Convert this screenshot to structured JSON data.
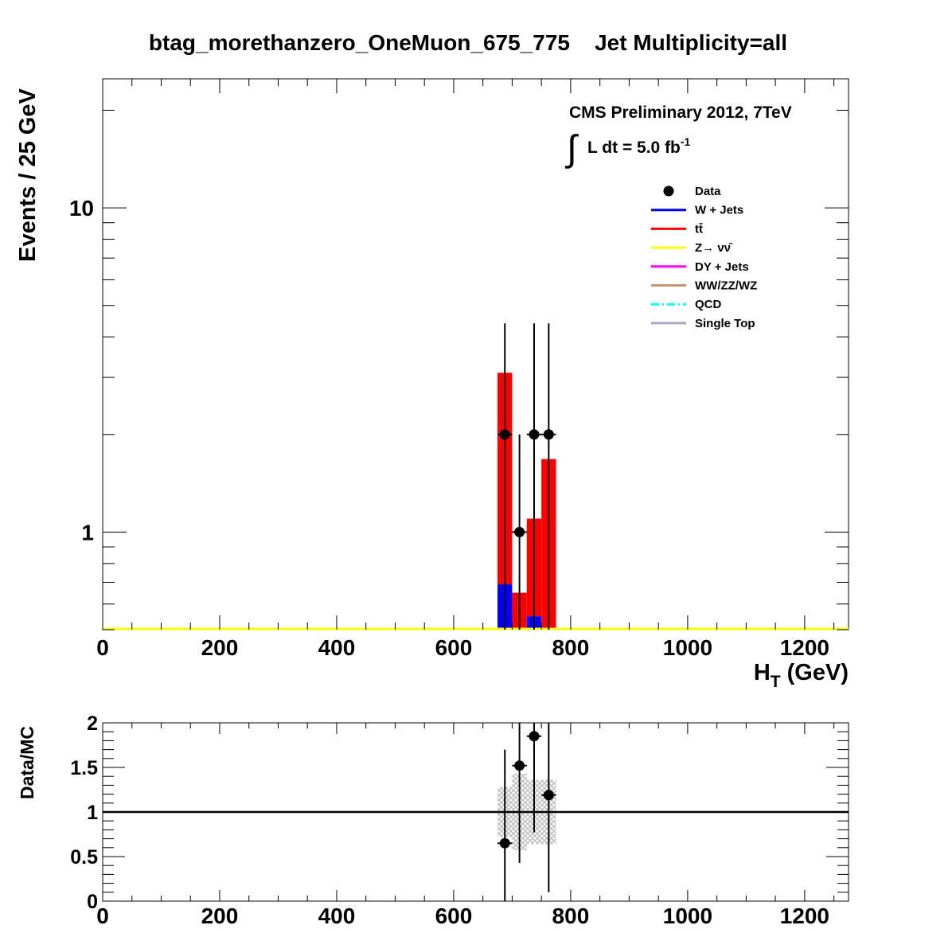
{
  "chart_data": [
    {
      "type": "bar",
      "title": "btag_morethanzero_OneMuon_675_775    Jet Multiplicity=all",
      "ylabel": "Events / 25 GeV",
      "xlabel": "H",
      "xlabel_sub": "T",
      "xlabel_unit": " (GeV)",
      "x_ticks": [
        "0",
        "200",
        "400",
        "600",
        "800",
        "1000",
        "1200"
      ],
      "y_ticks": [
        "1",
        "10"
      ],
      "xlim": [
        0,
        1275
      ],
      "ylim": [
        0.5,
        25
      ],
      "log_y": true,
      "stacked": true,
      "bin_width": 25,
      "cms_label": "CMS Preliminary 2012, 7TeV",
      "lumi": {
        "integral": "∫",
        "text": "L dt = 5.0 fb",
        "sup": "-1"
      },
      "legend_position": "top-right",
      "series": [
        {
          "name": "W + Jets",
          "color": "#0000ff",
          "style": "solid",
          "bins": [
            675,
            700,
            725,
            750
          ],
          "values": [
            0.69,
            0,
            0.55,
            0
          ]
        },
        {
          "name": "tt̄",
          "color": "#ff0000",
          "style": "solid",
          "bins": [
            675,
            700,
            725,
            750
          ],
          "values": [
            2.41,
            0.65,
            0.55,
            1.68
          ]
        },
        {
          "name": "Z→ νν̄",
          "color": "#ffff00",
          "style": "solid",
          "values": []
        },
        {
          "name": "DY + Jets",
          "color": "#ff00ff",
          "style": "solid",
          "values": []
        },
        {
          "name": "WW/ZZ/WZ",
          "color": "#c8956e",
          "style": "solid",
          "values": []
        },
        {
          "name": "QCD",
          "color": "#00ffff",
          "style": "dashdot",
          "values": []
        },
        {
          "name": "Single Top",
          "color": "#a9a6c8",
          "style": "solid",
          "values": []
        }
      ],
      "data": {
        "name": "Data",
        "points": [
          {
            "x": 687.5,
            "y": 2,
            "ylow": 0.5,
            "yhigh": 4.4
          },
          {
            "x": 712.5,
            "y": 1,
            "ylow": 0.5,
            "yhigh": 2
          },
          {
            "x": 737.5,
            "y": 2,
            "ylow": 0.5,
            "yhigh": 4.4
          },
          {
            "x": 762.5,
            "y": 2,
            "ylow": 0.5,
            "yhigh": 4.4
          }
        ]
      }
    },
    {
      "type": "scatter",
      "ylabel": "Data/MC",
      "x_ticks": [
        "0",
        "200",
        "400",
        "600",
        "800",
        "1000",
        "1200"
      ],
      "y_ticks": [
        "0",
        "0.5",
        "1",
        "1.5",
        "2"
      ],
      "xlim": [
        0,
        1275
      ],
      "ylim": [
        0,
        2
      ],
      "reference_line": 1,
      "uncertainty_band": [
        {
          "x0": 675,
          "x1": 700,
          "low": 0.72,
          "high": 1.28
        },
        {
          "x0": 700,
          "x1": 725,
          "low": 0.57,
          "high": 1.43
        },
        {
          "x0": 725,
          "x1": 750,
          "low": 0.64,
          "high": 1.36
        },
        {
          "x0": 750,
          "x1": 775,
          "low": 0.64,
          "high": 1.36
        }
      ],
      "points": [
        {
          "x": 687.5,
          "y": 0.65,
          "ylow": 0,
          "yhigh": 1.7
        },
        {
          "x": 712.5,
          "y": 1.52,
          "ylow": 0.43,
          "yhigh": 2
        },
        {
          "x": 737.5,
          "y": 1.85,
          "ylow": 0.77,
          "yhigh": 2
        },
        {
          "x": 762.5,
          "y": 1.19,
          "ylow": 0.1,
          "yhigh": 2
        }
      ]
    }
  ]
}
